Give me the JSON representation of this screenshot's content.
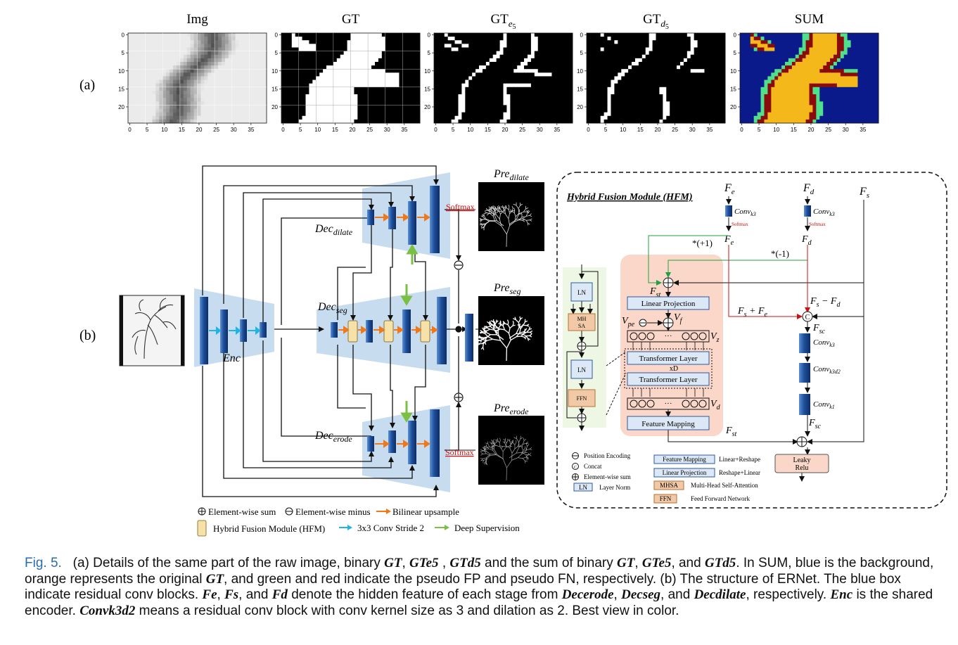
{
  "panel_labels": {
    "a": "(a)",
    "b": "(b)"
  },
  "panel_a": {
    "titles": [
      "Img",
      "GT",
      "GT",
      "GT",
      "SUM"
    ],
    "title_subscripts": [
      "",
      "",
      "e5",
      "d5",
      ""
    ],
    "x_ticks": [
      "0",
      "5",
      "10",
      "15",
      "20",
      "25",
      "30",
      "35"
    ],
    "y_ticks": [
      "0",
      "5",
      "10",
      "15",
      "20"
    ]
  },
  "colors": {
    "sum_background": "#0a1a8a",
    "sum_gt": "#f4b81a",
    "sum_fp": "#4fe08c",
    "sum_fn": "#8b0a0a",
    "box_fill": "#c8dcf0",
    "block_blue": "#1e4f9a",
    "hfm_yellow": "#f6e2a8",
    "orange_arrow": "#f07818",
    "cyan_arrow": "#1eb4e6",
    "green_arrow": "#7ac143",
    "red_line": "#d01010",
    "green_line": "#20a040",
    "transformer_fill": "#fad7c8"
  },
  "panel_b": {
    "branches": {
      "dilate": "Dec",
      "dilate_sub": "dilate",
      "seg": "Dec",
      "seg_sub": "seg",
      "erode": "Dec",
      "erode_sub": "erode",
      "enc": "Enc"
    },
    "softmax_top": "Softmax",
    "softmax_bottom": "Softmax",
    "outputs": {
      "dilate": "Pre",
      "dilate_sub": "dilate",
      "seg": "Pre",
      "seg_sub": "seg",
      "erode": "Pre",
      "erode_sub": "erode"
    },
    "legend": {
      "sum": "Element-wise sum",
      "minus": "Element-wise minus",
      "bilinear": "Bilinear upsample",
      "hfm": "Hybrid Fusion Module (HFM)",
      "conv": "3x3 Conv Stride 2",
      "deep": "Deep Supervision"
    }
  },
  "hfm": {
    "title": "Hybrid Fusion Module (HFM)",
    "fe": "F",
    "fe_sub": "e",
    "fd": "F",
    "fd_sub": "d",
    "fs": "F",
    "fs_sub": "s",
    "conv": "Conv",
    "conv_sub": "k3",
    "conv3d2_sub": "k3d2",
    "conv1_sub": "k1",
    "softmax": "Softmax",
    "plus_one": "*(+1)",
    "minus_one": "*(-1)",
    "fe_hat": "F",
    "fd_hat": "F",
    "fst": "F",
    "fst_sub": "st",
    "fs_plus_fe": "F",
    "fs_minus_fd": "F",
    "fsc": "F",
    "fsc_sub": "sc",
    "linear_projection": "Linear Projection",
    "vpe": "V",
    "vpe_sub": "pe",
    "vf": "V",
    "vf_sub": "f",
    "vz": "V",
    "vz_sub": "z",
    "vd": "V",
    "vd_sub": "d",
    "dots": "···",
    "transformer_layer_1": "Transformer Layer",
    "xd": "xD",
    "transformer_layer_2": "Transformer Layer",
    "feature_mapping": "Feature Mapping",
    "leaky_relu_1": "Leaky",
    "leaky_relu_2": "Relu",
    "ln": "LN",
    "mhsa_1": "MH",
    "mhsa_2": "SA",
    "ffn": "FFN",
    "legend": {
      "pos_enc": "Position Encoding",
      "concat": "Concat",
      "ew_sum": "Element-wise sum",
      "ln_label": "LN",
      "layer_norm": "Layer Norm",
      "fm_label": "Feature Mapping",
      "fm_desc": "Linear+Reshape",
      "lp_label": "Linear Projection",
      "lp_desc": "Reshape+Linear",
      "mhsa_label": "MHSA",
      "mhsa_desc": "Multi-Head Self-Attention",
      "ffn_label": "FFN",
      "ffn_desc": "Feed Forward Network"
    }
  },
  "caption": {
    "fig_label": "Fig. 5.",
    "p1": "(a) Details of the same part of the raw image, binary",
    "m_gt": "GT",
    "m_gte5": "GTe5",
    "m_gtd5": "GTd5",
    "p2": "and the sum of binary",
    "p3": ", and",
    "p4": ". In SUM, blue is the background, orange represents the original",
    "p5": ", and green and red indicate the pseudo FP and pseudo FN, respectively. (b) The structure of ERNet. The blue box indicate residual conv blocks.",
    "m_fe": "Fe",
    "m_fs": "Fs",
    "m_fd": "Fd",
    "p6": "and",
    "p7": "denote the hidden feature of each stage from",
    "m_decerode": "Decerode",
    "m_decseg": "Decseg",
    "m_decdilate": "Decdilate",
    "p8": ", respectively.",
    "m_enc": "Enc",
    "p9": "is the shared encoder.",
    "m_convk3d2": "Convk3d2",
    "p10": "means a residual conv block with conv kernel size as 3 and dilation as 2. Best view in color."
  }
}
